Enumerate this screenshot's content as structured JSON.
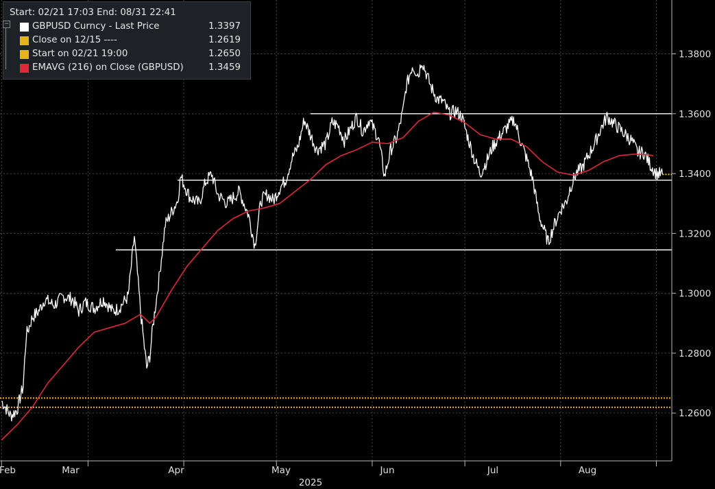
{
  "legend": {
    "header": "Start: 02/21 17:03 End: 08/31 22:41",
    "items": [
      {
        "label": "GBPUSD Curncy - Last Price",
        "value": "1.3397",
        "color": "#ffffff"
      },
      {
        "label": "Close on 12/15 ----",
        "value": "1.2619",
        "color": "#e8b21a"
      },
      {
        "label": "Start on 02/21 19:00",
        "value": "1.2650",
        "color": "#e8b21a"
      },
      {
        "label": "EMAVG (216)  on Close (GBPUSD)",
        "value": "1.3459",
        "color": "#e0283c"
      }
    ]
  },
  "chart_data": {
    "type": "line",
    "x_ticks": [
      "Feb",
      "Mar",
      "Apr",
      "May",
      "Jun",
      "Jul",
      "Aug"
    ],
    "x_year_label": "2025",
    "y_ticks": [
      "1.2600",
      "1.2800",
      "1.3000",
      "1.3200",
      "1.3400",
      "1.3600",
      "1.3800"
    ],
    "ylim": [
      1.244,
      1.398
    ],
    "grid": true,
    "x_unit": "days since Feb 1 2025",
    "xlim": [
      -0.5,
      217
    ],
    "series": [
      {
        "name": "GBPUSD Curncy - Last Price",
        "color": "#ffffff",
        "x": [
          0,
          3,
          5,
          7,
          8,
          10,
          12,
          14,
          17,
          20,
          23,
          25,
          27,
          30,
          33,
          36,
          38,
          41,
          43,
          45,
          47,
          48,
          49,
          51,
          53,
          55,
          57,
          58,
          61,
          64,
          66,
          68,
          70,
          73,
          75,
          77,
          80,
          82,
          84,
          86,
          88,
          90,
          92,
          94,
          96,
          98,
          100,
          102,
          105,
          107,
          109,
          111,
          113,
          115,
          117,
          119,
          122,
          124,
          126,
          128,
          130,
          131,
          133,
          135,
          136,
          139,
          141,
          143,
          145,
          147,
          149,
          151,
          153,
          155,
          157,
          159,
          161,
          164,
          166,
          168,
          170,
          172,
          174,
          177,
          179,
          181,
          183,
          184,
          186,
          188,
          190,
          192,
          194,
          196,
          198,
          200,
          202,
          204,
          206,
          208,
          210,
          212,
          214
        ],
        "y": [
          1.264,
          1.259,
          1.261,
          1.269,
          1.286,
          1.292,
          1.294,
          1.298,
          1.296,
          1.299,
          1.298,
          1.294,
          1.297,
          1.295,
          1.298,
          1.294,
          1.295,
          1.299,
          1.319,
          1.294,
          1.275,
          1.279,
          1.289,
          1.305,
          1.323,
          1.327,
          1.331,
          1.339,
          1.332,
          1.33,
          1.337,
          1.34,
          1.333,
          1.33,
          1.332,
          1.334,
          1.326,
          1.316,
          1.331,
          1.333,
          1.331,
          1.335,
          1.338,
          1.345,
          1.349,
          1.358,
          1.353,
          1.348,
          1.35,
          1.357,
          1.356,
          1.351,
          1.355,
          1.359,
          1.354,
          1.358,
          1.352,
          1.339,
          1.348,
          1.352,
          1.361,
          1.369,
          1.376,
          1.373,
          1.378,
          1.369,
          1.365,
          1.364,
          1.36,
          1.361,
          1.359,
          1.352,
          1.345,
          1.34,
          1.344,
          1.349,
          1.352,
          1.356,
          1.358,
          1.351,
          1.345,
          1.338,
          1.326,
          1.317,
          1.323,
          1.328,
          1.331,
          1.335,
          1.34,
          1.342,
          1.346,
          1.35,
          1.355,
          1.359,
          1.357,
          1.355,
          1.353,
          1.351,
          1.347,
          1.347,
          1.343,
          1.34,
          1.3397
        ]
      },
      {
        "name": "EMAVG (216)  on Close (GBPUSD)",
        "color": "#e0283c",
        "x": [
          0,
          5,
          10,
          15,
          20,
          25,
          30,
          35,
          40,
          45,
          48,
          50,
          55,
          60,
          65,
          70,
          75,
          80,
          85,
          90,
          95,
          100,
          105,
          110,
          115,
          120,
          125,
          130,
          135,
          140,
          145,
          150,
          155,
          160,
          165,
          170,
          175,
          180,
          185,
          190,
          195,
          200,
          205,
          210,
          211
        ],
        "y": [
          1.251,
          1.256,
          1.262,
          1.27,
          1.276,
          1.282,
          1.287,
          1.2885,
          1.29,
          1.293,
          1.29,
          1.292,
          1.301,
          1.309,
          1.315,
          1.321,
          1.325,
          1.3275,
          1.3285,
          1.33,
          1.334,
          1.338,
          1.343,
          1.346,
          1.348,
          1.3505,
          1.35,
          1.352,
          1.3575,
          1.3605,
          1.3595,
          1.357,
          1.353,
          1.3515,
          1.3515,
          1.349,
          1.344,
          1.3405,
          1.3395,
          1.341,
          1.344,
          1.346,
          1.3465,
          1.3462,
          1.3459
        ]
      }
    ],
    "hlines": [
      {
        "name": "Close on 12/15",
        "value": 1.2619,
        "color": "#e8b21a",
        "style": "dotted"
      },
      {
        "name": "Start on 02/21 19:00",
        "value": 1.265,
        "color": "#e8b21a",
        "style": "dotted"
      },
      {
        "name": "Last Price (dotted extension)",
        "value": 1.3397,
        "color": "#e8b21a",
        "style": "dotted",
        "x_from": 214,
        "x_to": 217
      },
      {
        "name": "level",
        "value": 1.36,
        "color": "#ffffff",
        "style": "solid",
        "x_from": 100,
        "x_to": 217
      },
      {
        "name": "level",
        "value": 1.3378,
        "color": "#ffffff",
        "style": "solid",
        "x_from": 57,
        "x_to": 217
      },
      {
        "name": "level",
        "value": 1.3145,
        "color": "#ffffff",
        "style": "solid",
        "x_from": 37,
        "x_to": 217
      }
    ]
  }
}
